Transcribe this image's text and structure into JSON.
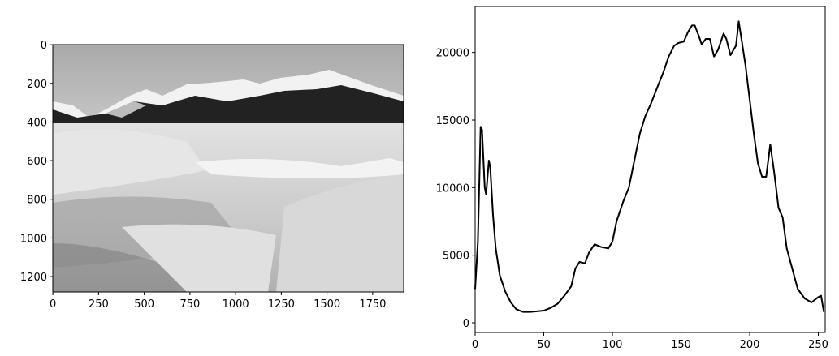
{
  "chart_data": [
    {
      "type": "image",
      "xlim": [
        -0.5,
        1919.5
      ],
      "ylim": [
        1279.5,
        -0.5
      ],
      "xticks": [
        0,
        250,
        500,
        750,
        1000,
        1250,
        1500,
        1750
      ],
      "yticks": [
        0,
        200,
        400,
        600,
        800,
        1000,
        1200
      ]
    },
    {
      "type": "line",
      "color": "#000000",
      "x": [
        0,
        2,
        4,
        5,
        7,
        8,
        10,
        11,
        13,
        15,
        18,
        22,
        26,
        30,
        35,
        40,
        45,
        50,
        55,
        60,
        65,
        70,
        73,
        76,
        80,
        83,
        87,
        92,
        97,
        100,
        103,
        108,
        112,
        117,
        120,
        124,
        128,
        133,
        137,
        141,
        145,
        148,
        152,
        155,
        158,
        160,
        163,
        165,
        168,
        171,
        174,
        177,
        181,
        183,
        186,
        190,
        192,
        194,
        197,
        200,
        203,
        206,
        209,
        212,
        215,
        218,
        221,
        224,
        227,
        231,
        235,
        240,
        245,
        250,
        252,
        254
      ],
      "values": [
        2500,
        6000,
        14500,
        14300,
        10000,
        9500,
        12000,
        11500,
        8000,
        5500,
        3500,
        2300,
        1500,
        1000,
        800,
        800,
        850,
        900,
        1100,
        1400,
        2000,
        2700,
        4000,
        4500,
        4400,
        5200,
        5800,
        5600,
        5500,
        6000,
        7500,
        9000,
        10000,
        12500,
        14000,
        15300,
        16200,
        17500,
        18500,
        19700,
        20500,
        20700,
        20800,
        21500,
        22000,
        22000,
        21200,
        20600,
        21000,
        21000,
        19700,
        20200,
        21400,
        21000,
        19800,
        20500,
        22300,
        21000,
        19000,
        16500,
        14000,
        11800,
        10800,
        10800,
        13200,
        11000,
        8500,
        7800,
        5500,
        4000,
        2500,
        1800,
        1500,
        1900,
        2000,
        800
      ],
      "xlim": [
        0,
        255
      ],
      "ylim": [
        -720,
        23400
      ],
      "xticks": [
        0,
        50,
        100,
        150,
        200,
        250
      ],
      "yticks": [
        0,
        5000,
        10000,
        15000,
        20000
      ]
    }
  ]
}
